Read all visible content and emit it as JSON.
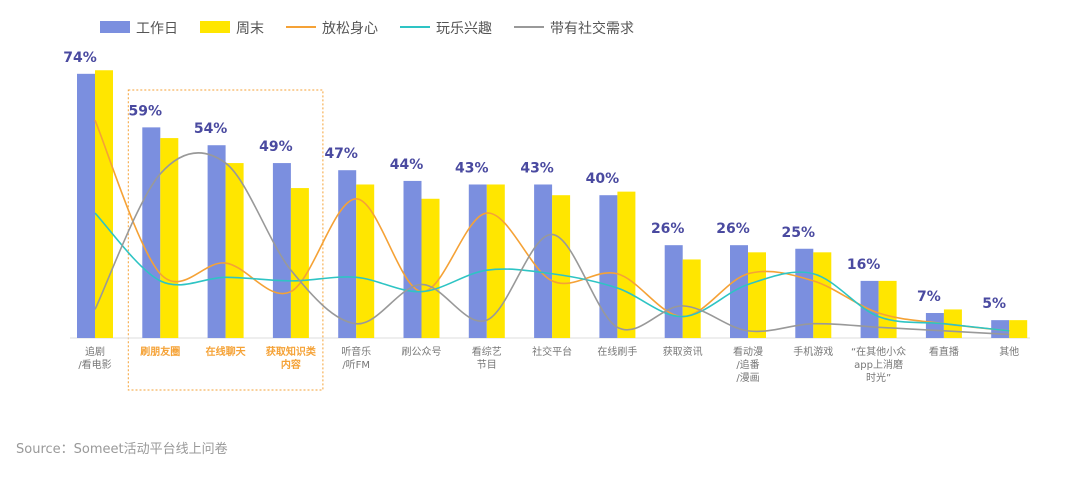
{
  "chart_data": {
    "type": "bar-line",
    "categories": [
      "追剧\n/看电影",
      "刷朋友圈",
      "在线聊天",
      "获取知识类\n内容",
      "听音乐\n/听FM",
      "刷公众号",
      "看综艺\n节目",
      "社交平台",
      "在线刷手",
      "获取资讯",
      "看动漫\n/追番\n/漫画",
      "手机游戏",
      "“在其他小众\napp上消磨\n时光”",
      "看直播",
      "其他"
    ],
    "series": [
      {
        "name": "工作日",
        "kind": "bar",
        "color": "#7b8fdf",
        "values": [
          74,
          59,
          54,
          49,
          47,
          44,
          43,
          43,
          40,
          26,
          26,
          25,
          16,
          7,
          5
        ],
        "value_labels": [
          "74%",
          "59%",
          "54%",
          "49%",
          "47%",
          "44%",
          "43%",
          "43%",
          "40%",
          "26%",
          "26%",
          "25%",
          "16%",
          "7%",
          "5%"
        ]
      },
      {
        "name": "周末",
        "kind": "bar",
        "color": "#ffe600",
        "values": [
          75,
          56,
          49,
          42,
          43,
          39,
          43,
          40,
          41,
          22,
          24,
          24,
          16,
          8,
          5
        ]
      },
      {
        "name": "放松身心",
        "kind": "line",
        "color": "#f5a236",
        "values": [
          61,
          18,
          21,
          13,
          39,
          13,
          35,
          16,
          18,
          6,
          18,
          16,
          7,
          4,
          2
        ]
      },
      {
        "name": "玩乐兴趣",
        "kind": "line",
        "color": "#2ec4c4",
        "values": [
          35,
          16,
          17,
          16,
          17,
          13,
          19,
          18,
          14,
          6,
          15,
          18,
          6,
          4,
          2
        ]
      },
      {
        "name": "带有社交需求",
        "kind": "line",
        "color": "#999999",
        "values": [
          8,
          46,
          49,
          19,
          4,
          15,
          5,
          29,
          3,
          9,
          2,
          4,
          3,
          2,
          1
        ]
      }
    ],
    "highlighted_categories": [
      1,
      2,
      3
    ],
    "highlight_color": "#f5a236",
    "source": "Source：Someet活动平台线上问卷"
  }
}
